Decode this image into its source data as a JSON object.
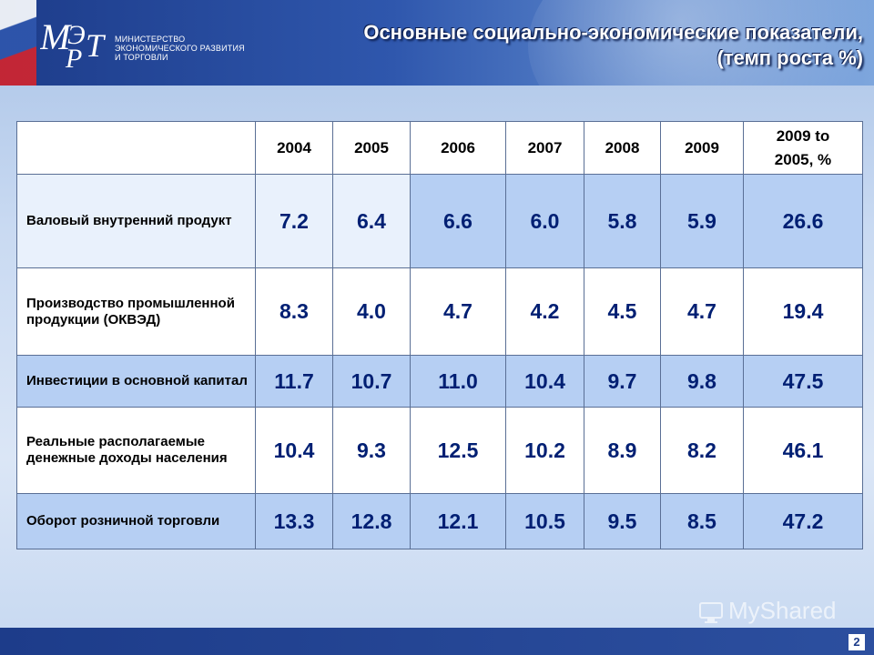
{
  "header": {
    "logo_lines": [
      "МИНИСТЕРСТВО",
      "ЭКОНОМИЧЕСКОГО РАЗВИТИЯ",
      "И ТОРГОВЛИ"
    ],
    "title_line1": "Основные социально-экономические показатели,",
    "title_line2": "(темп роста %)"
  },
  "table": {
    "columns": [
      "2004",
      "2005",
      "2006",
      "2007",
      "2008",
      "2009"
    ],
    "last_column": [
      "2009 to",
      "2005, %"
    ],
    "rows": [
      {
        "label": "Валовый внутренний продукт",
        "values": [
          "7.2",
          "6.4",
          "6.6",
          "6.0",
          "5.8",
          "5.9",
          "26.6"
        ]
      },
      {
        "label": "Производство промышленной продукции (ОКВЭД)",
        "values": [
          "8.3",
          "4.0",
          "4.7",
          "4.2",
          "4.5",
          "4.7",
          "19.4"
        ]
      },
      {
        "label": "Инвестиции в основной капитал",
        "values": [
          "11.7",
          "10.7",
          "11.0",
          "10.4",
          "9.7",
          "9.8",
          "47.5"
        ]
      },
      {
        "label": "Реальные располагаемые денежные доходы населения",
        "values": [
          "10.4",
          "9.3",
          "12.5",
          "10.2",
          "8.9",
          "8.2",
          "46.1"
        ]
      },
      {
        "label": "Оборот розничной торговли",
        "values": [
          "13.3",
          "12.8",
          "12.1",
          "10.5",
          "9.5",
          "8.5",
          "47.2"
        ]
      }
    ]
  },
  "footer": {
    "page_number": "2",
    "watermark": "MyShared"
  },
  "colors": {
    "header_blue": "#1d3c8a",
    "value_text": "#001f73",
    "row_blue": "#b6cff3",
    "row_light": "#e9f1fc"
  }
}
